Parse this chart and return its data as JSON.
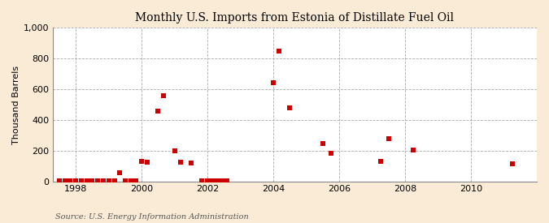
{
  "title": "Monthly U.S. Imports from Estonia of Distillate Fuel Oil",
  "ylabel": "Thousand Barrels",
  "source": "Source: U.S. Energy Information Administration",
  "background_color": "#faebd7",
  "plot_background_color": "#ffffff",
  "marker_color": "#cc0000",
  "marker_size": 18,
  "xlim": [
    1997.3,
    2012.0
  ],
  "ylim": [
    0,
    1000
  ],
  "yticks": [
    0,
    200,
    400,
    600,
    800,
    1000
  ],
  "xticks": [
    1998,
    2000,
    2002,
    2004,
    2006,
    2008,
    2010
  ],
  "points": [
    [
      1997.5,
      3
    ],
    [
      1997.67,
      3
    ],
    [
      1997.83,
      3
    ],
    [
      1998.0,
      3
    ],
    [
      1998.17,
      3
    ],
    [
      1998.33,
      3
    ],
    [
      1998.5,
      3
    ],
    [
      1998.67,
      3
    ],
    [
      1998.83,
      3
    ],
    [
      1999.0,
      3
    ],
    [
      1999.17,
      3
    ],
    [
      1999.33,
      55
    ],
    [
      1999.5,
      3
    ],
    [
      1999.67,
      3
    ],
    [
      1999.83,
      3
    ],
    [
      2000.0,
      130
    ],
    [
      2000.17,
      125
    ],
    [
      2000.5,
      460
    ],
    [
      2000.67,
      560
    ],
    [
      2001.0,
      200
    ],
    [
      2001.17,
      125
    ],
    [
      2001.5,
      120
    ],
    [
      2001.83,
      3
    ],
    [
      2002.0,
      3
    ],
    [
      2002.08,
      3
    ],
    [
      2002.17,
      3
    ],
    [
      2002.25,
      3
    ],
    [
      2002.33,
      3
    ],
    [
      2002.42,
      3
    ],
    [
      2002.5,
      3
    ],
    [
      2002.58,
      3
    ],
    [
      2004.0,
      645
    ],
    [
      2004.17,
      848
    ],
    [
      2004.5,
      480
    ],
    [
      2005.5,
      248
    ],
    [
      2005.75,
      185
    ],
    [
      2007.25,
      130
    ],
    [
      2007.5,
      278
    ],
    [
      2008.25,
      207
    ],
    [
      2011.25,
      115
    ]
  ]
}
